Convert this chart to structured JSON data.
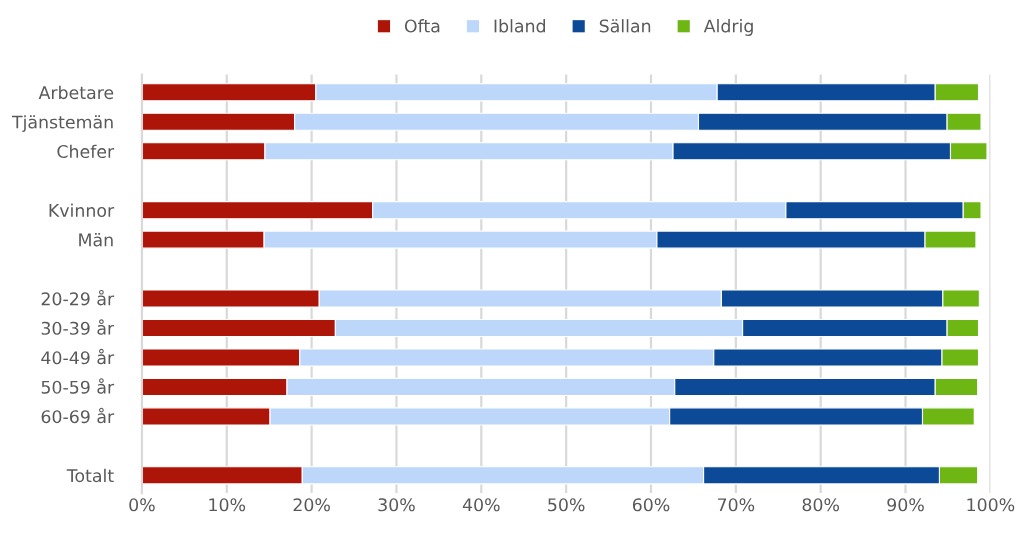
{
  "chart_data": {
    "type": "bar",
    "orientation": "horizontal",
    "stacked": true,
    "categories": [
      "Arbetare",
      "Tjänstemän",
      "Chefer",
      null,
      "Kvinnor",
      "Män",
      null,
      "20-29 år",
      "30-39 år",
      "40-49 år",
      "50-59 år",
      "60-69 år",
      null,
      "Totalt"
    ],
    "series": [
      {
        "name": "Ofta",
        "color": "#ae1509",
        "values": [
          20.5,
          18.0,
          14.5,
          null,
          27.2,
          14.4,
          null,
          20.9,
          22.8,
          18.6,
          17.1,
          15.1,
          null,
          18.9
        ]
      },
      {
        "name": "Ibland",
        "color": "#bdd7fb",
        "values": [
          47.3,
          47.6,
          48.1,
          null,
          48.7,
          46.3,
          null,
          47.4,
          48.0,
          48.8,
          45.7,
          47.1,
          null,
          47.3
        ]
      },
      {
        "name": "Sällan",
        "color": "#0c4a98",
        "values": [
          25.7,
          29.3,
          32.7,
          null,
          20.9,
          31.6,
          null,
          26.1,
          24.1,
          26.9,
          30.7,
          29.8,
          null,
          27.8
        ]
      },
      {
        "name": "Aldrig",
        "color": "#6db614",
        "values": [
          5.1,
          4.0,
          4.3,
          null,
          2.1,
          6.0,
          null,
          4.3,
          3.7,
          4.3,
          5.0,
          6.1,
          null,
          4.5
        ]
      }
    ],
    "xlim": [
      0,
      100
    ],
    "xticks": [
      {
        "value": 0,
        "label": "0%"
      },
      {
        "value": 10,
        "label": "10%"
      },
      {
        "value": 20,
        "label": "20%"
      },
      {
        "value": 30,
        "label": "30%"
      },
      {
        "value": 40,
        "label": "40%"
      },
      {
        "value": 50,
        "label": "50%"
      },
      {
        "value": 60,
        "label": "60%"
      },
      {
        "value": 70,
        "label": "70%"
      },
      {
        "value": 80,
        "label": "80%"
      },
      {
        "value": 90,
        "label": "90%"
      },
      {
        "value": 100,
        "label": "100%"
      }
    ],
    "grid": "x",
    "legend": "top"
  }
}
